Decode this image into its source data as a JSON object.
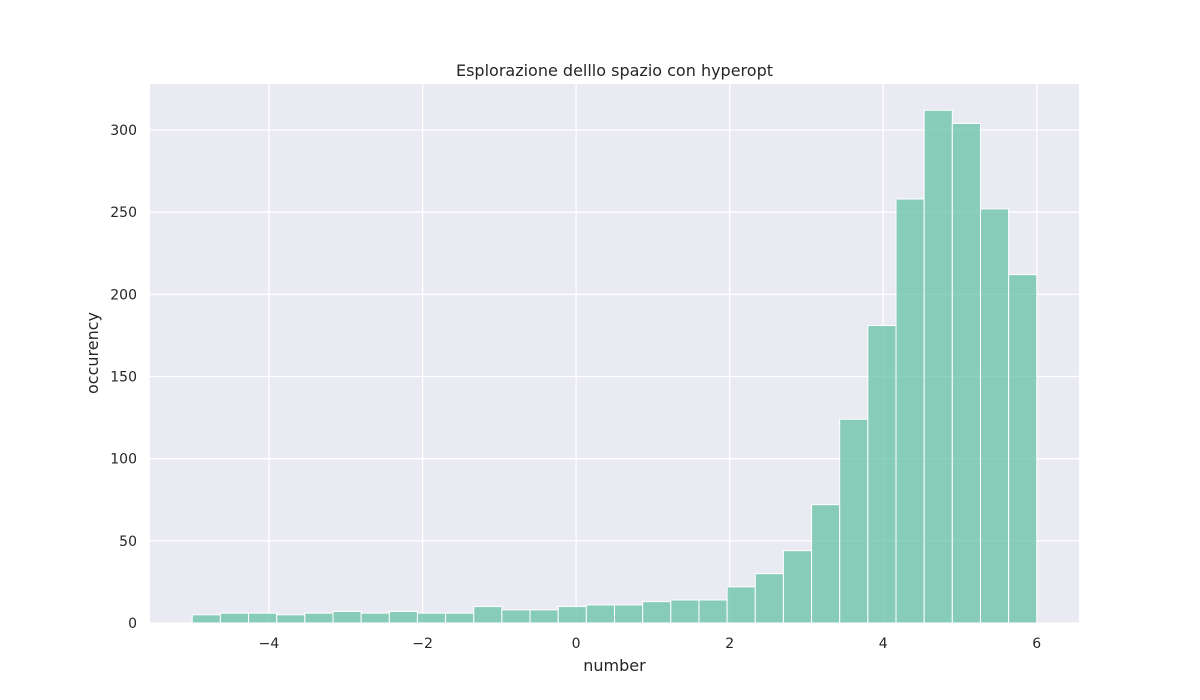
{
  "chart_data": {
    "type": "bar",
    "title": "Esplorazione delllo spazio con hyperopt",
    "xlabel": "number",
    "ylabel": "occurency",
    "xlim": [
      -5.55,
      6.55
    ],
    "ylim": [
      0,
      328
    ],
    "x_ticks": [
      -4,
      -2,
      0,
      2,
      4,
      6
    ],
    "y_ticks": [
      0,
      50,
      100,
      150,
      200,
      250,
      300
    ],
    "grid": true,
    "bin_edges": [
      -5.0,
      -4.6333,
      -4.2667,
      -3.9,
      -3.5333,
      -3.1667,
      -2.8,
      -2.4333,
      -2.0667,
      -1.7,
      -1.3333,
      -0.9667,
      -0.6,
      -0.2333,
      0.1333,
      0.5,
      0.8667,
      1.2333,
      1.6,
      1.9667,
      2.3333,
      2.7,
      3.0667,
      3.4333,
      3.8,
      4.1667,
      4.5333,
      4.9,
      5.2667,
      5.6333,
      6.0
    ],
    "values": [
      5,
      6,
      6,
      5,
      6,
      7,
      6,
      7,
      6,
      6,
      10,
      8,
      8,
      10,
      11,
      11,
      13,
      14,
      14,
      22,
      30,
      44,
      72,
      124,
      181,
      258,
      312,
      304,
      252,
      212
    ],
    "bar_color": "#66c2a5",
    "bar_opacity": 0.75,
    "background_color": "#eaeaf2"
  }
}
